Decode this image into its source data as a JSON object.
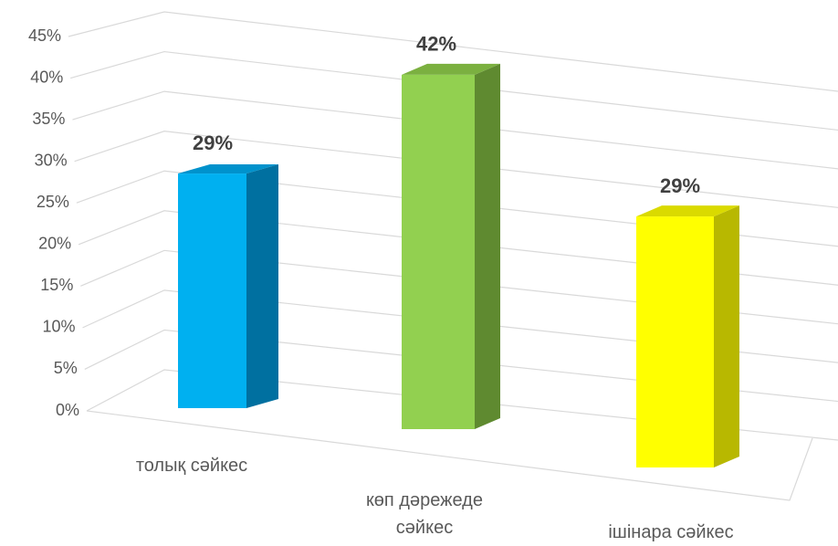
{
  "chart_data": {
    "type": "bar3d",
    "categories": [
      "толық сәйкес",
      "көп дәрежеде сәйкес",
      "ішінара сәйкес"
    ],
    "values": [
      29,
      42,
      29
    ],
    "value_labels": [
      "29%",
      "42%",
      "29%"
    ],
    "colors": [
      "#00b0f0",
      "#92d050",
      "#ffff00"
    ],
    "ylim": [
      0,
      45
    ],
    "yticks": [
      {
        "value": 0,
        "label": "0%"
      },
      {
        "value": 5,
        "label": "5%"
      },
      {
        "value": 10,
        "label": "10%"
      },
      {
        "value": 15,
        "label": "15%"
      },
      {
        "value": 20,
        "label": "20%"
      },
      {
        "value": 25,
        "label": "25%"
      },
      {
        "value": 30,
        "label": "30%"
      },
      {
        "value": 35,
        "label": "35%"
      },
      {
        "value": 40,
        "label": "40%"
      },
      {
        "value": 45,
        "label": "45%"
      }
    ],
    "grid": true
  }
}
